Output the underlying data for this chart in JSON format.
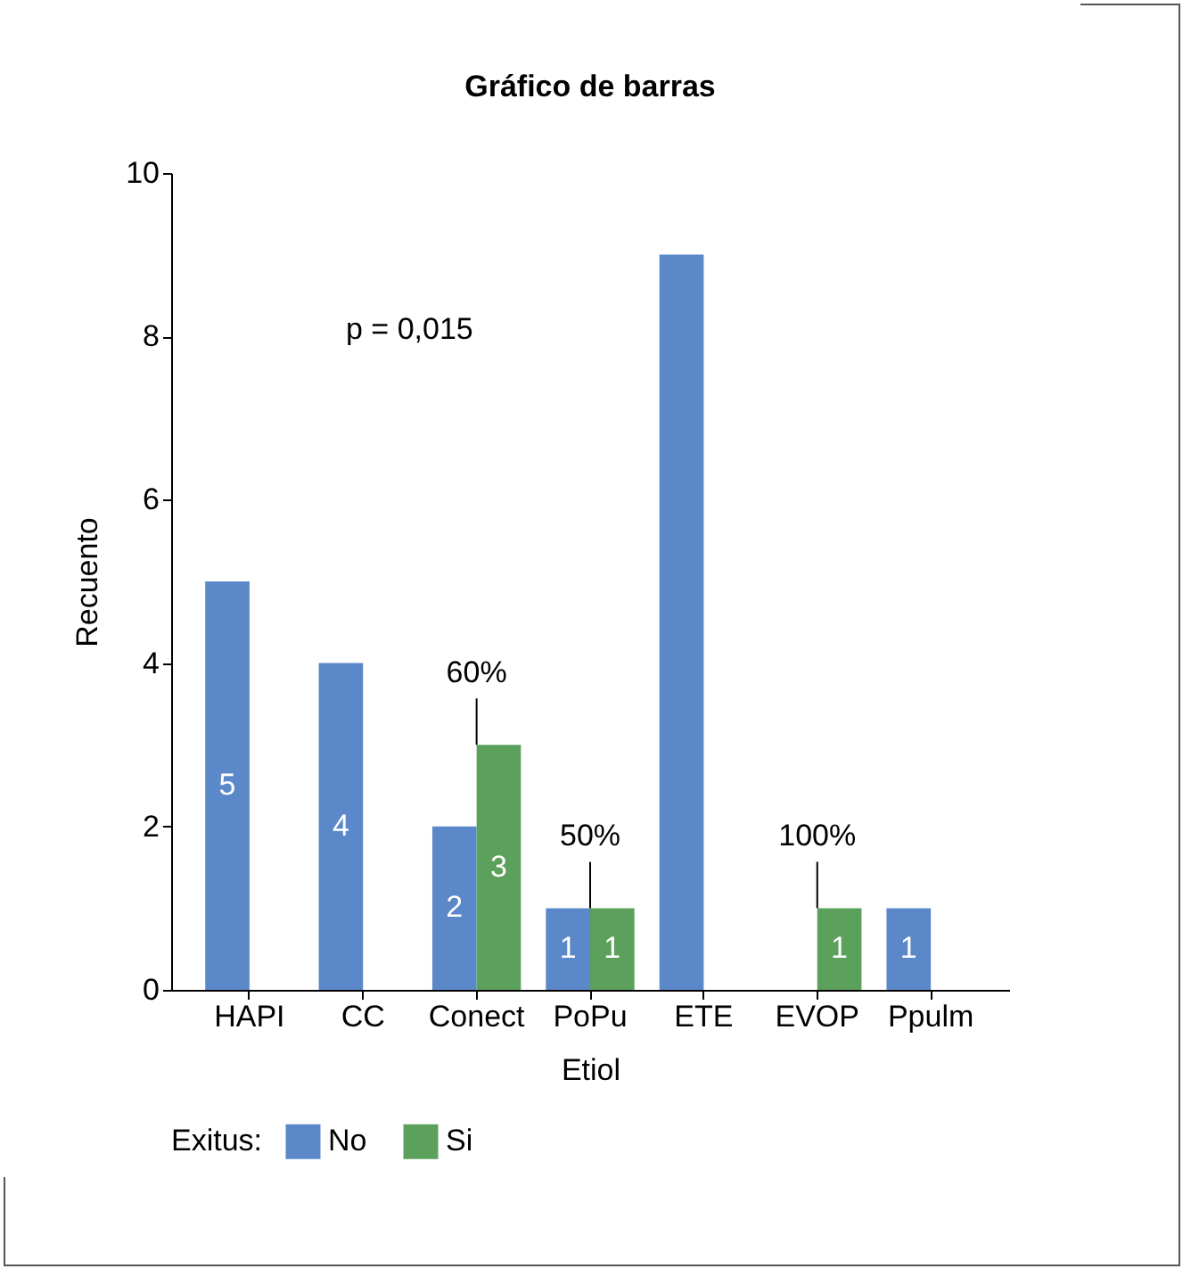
{
  "chart_data": {
    "type": "bar",
    "title": "Gráfico de barras",
    "xlabel": "Etiol",
    "ylabel": "Recuento",
    "legend_title": "Exitus:",
    "categories": [
      "HAPI",
      "CC",
      "Conect",
      "PoPu",
      "ETE",
      "EVOP",
      "Ppulm"
    ],
    "series": [
      {
        "name": "No",
        "color": "#5b88c9",
        "values": [
          5,
          4,
          2,
          1,
          9,
          null,
          1
        ],
        "value_labels": [
          "5",
          "4",
          "2",
          "1",
          null,
          null,
          "1"
        ]
      },
      {
        "name": "Si",
        "color": "#5ba05b",
        "values": [
          null,
          null,
          3,
          1,
          null,
          1,
          null
        ],
        "value_labels": [
          null,
          null,
          "3",
          "1",
          null,
          "1",
          null
        ]
      }
    ],
    "ylim": [
      0,
      10
    ],
    "yticks": [
      0,
      2,
      4,
      6,
      8,
      10
    ],
    "grid": false,
    "legend": "bottom",
    "annotations": [
      "p = 0,015",
      {
        "text": "60%",
        "x": "Conect",
        "y": 3
      },
      {
        "text": "50%",
        "x": "PoPu",
        "y": 1
      },
      {
        "text": "100%",
        "x": "EVOP",
        "y": 1
      }
    ]
  }
}
